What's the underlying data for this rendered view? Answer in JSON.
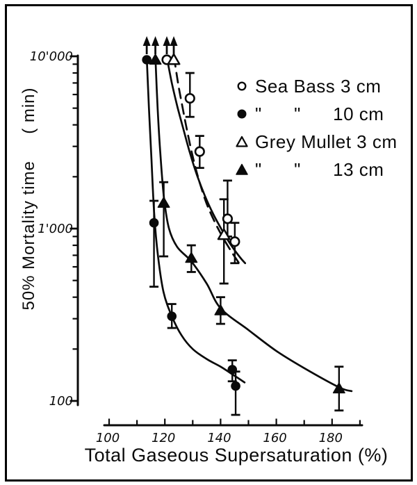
{
  "figure": {
    "background": "#ffffff",
    "frame_color": "#000000",
    "ink_color": "#0a0a0a"
  },
  "chart_data": {
    "type": "scatter",
    "title": "",
    "xlabel": "Total Gaseous Supersaturation (%)",
    "ylabel": "50% Mortality time     ( min)",
    "x_axis": {
      "min": 100,
      "max": 190,
      "tick_step": 10,
      "labeled_ticks": [
        100,
        120,
        140,
        160,
        180
      ],
      "scale": "linear",
      "grid": false
    },
    "y_axis": {
      "scale": "log",
      "min": 100,
      "max": 10000,
      "grid": false,
      "labeled_ticks": [
        {
          "value": 10000,
          "label": "10'000"
        },
        {
          "value": 1000,
          "label": "1'000"
        },
        {
          "value": 100,
          "label": "100"
        }
      ]
    },
    "series": [
      {
        "id": "sea-bass-3cm",
        "name": "Sea Bass 3 cm",
        "marker": "open-circle",
        "line_style": "solid",
        "censored": {
          "pct": 120.7,
          "value_exceeds": 10000
        },
        "points": [
          {
            "pct": 129.0,
            "val": 5700,
            "err_lo": 4450,
            "err_hi": 8000
          },
          {
            "pct": 132.5,
            "val": 2800,
            "err_lo": 2250,
            "err_hi": 3450
          },
          {
            "pct": 142.5,
            "val": 1140,
            "err_lo": 900,
            "err_hi": 1900
          },
          {
            "pct": 145.1,
            "val": 840,
            "err_lo": 630,
            "err_hi": 1080
          }
        ],
        "curve": [
          [
            120.7,
            9900
          ],
          [
            122.5,
            7000
          ],
          [
            124.5,
            5100
          ],
          [
            126.8,
            3700
          ],
          [
            129,
            2750
          ],
          [
            131.5,
            2050
          ],
          [
            134.3,
            1560
          ],
          [
            137.3,
            1220
          ],
          [
            140.5,
            980
          ],
          [
            143.8,
            800
          ],
          [
            147,
            680
          ],
          [
            148.8,
            630
          ]
        ]
      },
      {
        "id": "sea-bass-10cm",
        "name": "Sea Bass 10 cm",
        "marker": "filled-circle",
        "line_style": "solid",
        "censored": {
          "pct": 113.5,
          "value_exceeds": 10000
        },
        "points": [
          {
            "pct": 116.1,
            "val": 1080,
            "err_lo": 460,
            "err_hi": 1450
          },
          {
            "pct": 122.5,
            "val": 310,
            "err_lo": 265,
            "err_hi": 365
          },
          {
            "pct": 144.2,
            "val": 152,
            "err_lo": 130,
            "err_hi": 172
          },
          {
            "pct": 145.4,
            "val": 122,
            "err_lo": 83,
            "err_hi": 148
          }
        ],
        "curve": [
          [
            113.5,
            9900
          ],
          [
            114.3,
            5000
          ],
          [
            115.2,
            2500
          ],
          [
            116.2,
            1200
          ],
          [
            117.5,
            700
          ],
          [
            119.5,
            430
          ],
          [
            122.5,
            310
          ],
          [
            126,
            240
          ],
          [
            130,
            200
          ],
          [
            135,
            175
          ],
          [
            140,
            158
          ],
          [
            145,
            140
          ],
          [
            148.6,
            128
          ]
        ]
      },
      {
        "id": "grey-mullet-3cm",
        "name": "Grey Mullet 3 cm",
        "marker": "open-triangle",
        "line_style": "dashed",
        "censored": {
          "pct": 123.2,
          "value_exceeds": 10000
        },
        "points": [
          {
            "pct": 141.2,
            "val": 920,
            "err_lo": 480,
            "err_hi": 1480
          }
        ],
        "curve": [
          [
            123.3,
            9900
          ],
          [
            124.8,
            6900
          ],
          [
            126.4,
            5000
          ],
          [
            128.2,
            3560
          ],
          [
            130.2,
            2540
          ],
          [
            132.4,
            1870
          ],
          [
            134.9,
            1410
          ],
          [
            137.7,
            1110
          ],
          [
            140.8,
            890
          ],
          [
            144,
            730
          ],
          [
            147.3,
            607
          ]
        ]
      },
      {
        "id": "grey-mullet-13cm",
        "name": "Grey Mullet 13 cm",
        "marker": "filled-triangle",
        "line_style": "solid",
        "censored": {
          "pct": 116.6,
          "value_exceeds": 10000
        },
        "points": [
          {
            "pct": 119.6,
            "val": 1410,
            "err_lo": 690,
            "err_hi": 1860
          },
          {
            "pct": 129.5,
            "val": 675,
            "err_lo": 560,
            "err_hi": 800
          },
          {
            "pct": 140.0,
            "val": 335,
            "err_lo": 280,
            "err_hi": 400
          },
          {
            "pct": 182.5,
            "val": 118,
            "err_lo": 88,
            "err_hi": 158
          }
        ],
        "curve": [
          [
            116.6,
            9900
          ],
          [
            117.4,
            5000
          ],
          [
            118.4,
            2700
          ],
          [
            119.7,
            1500
          ],
          [
            121.5,
            1000
          ],
          [
            124.5,
            780
          ],
          [
            129.5,
            645
          ],
          [
            135,
            480
          ],
          [
            140,
            345
          ],
          [
            150,
            258
          ],
          [
            160,
            195
          ],
          [
            170,
            155
          ],
          [
            182.5,
            120
          ],
          [
            187,
            114
          ]
        ]
      }
    ],
    "legend": [
      {
        "marker": "open-circle",
        "label": "Sea Bass 3 cm"
      },
      {
        "marker": "filled-circle",
        "label": "\"      \"      10 cm"
      },
      {
        "marker": "open-triangle",
        "label": "Grey Mullet 3 cm"
      },
      {
        "marker": "filled-triangle",
        "label": "\"      \"      13 cm"
      }
    ],
    "legend_position": "top-right"
  }
}
